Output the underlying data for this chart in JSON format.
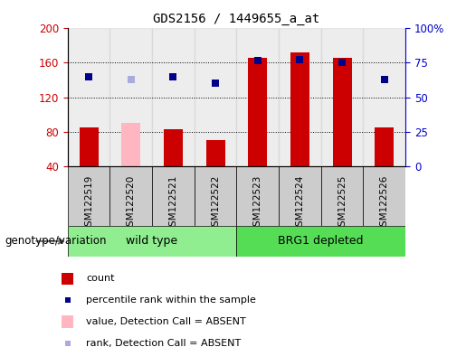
{
  "title": "GDS2156 / 1449655_a_at",
  "samples": [
    "GSM122519",
    "GSM122520",
    "GSM122521",
    "GSM122522",
    "GSM122523",
    "GSM122524",
    "GSM122525",
    "GSM122526"
  ],
  "group_labels": [
    "wild type",
    "BRG1 depleted"
  ],
  "group_ranges": [
    [
      0,
      3
    ],
    [
      4,
      7
    ]
  ],
  "group_colors": [
    "#90EE90",
    "#55DD55"
  ],
  "bar_values": [
    85,
    90,
    83,
    71,
    165,
    172,
    165,
    85
  ],
  "bar_colors": [
    "#CC0000",
    "#FFB6C1",
    "#CC0000",
    "#CC0000",
    "#CC0000",
    "#CC0000",
    "#CC0000",
    "#CC0000"
  ],
  "rank_values": [
    143,
    140,
    143,
    136,
    162,
    163,
    160,
    140
  ],
  "rank_colors": [
    "#00008B",
    "#AAAADD",
    "#00008B",
    "#00008B",
    "#00008B",
    "#00008B",
    "#00008B",
    "#00008B"
  ],
  "ylim_left": [
    40,
    200
  ],
  "ylim_right": [
    0,
    100
  ],
  "yticks_left": [
    40,
    80,
    120,
    160,
    200
  ],
  "yticks_right": [
    0,
    25,
    50,
    75,
    100
  ],
  "ytick_right_labels": [
    "0",
    "25",
    "50",
    "75",
    "100%"
  ],
  "grid_values": [
    80,
    120,
    160
  ],
  "ylabel_left_color": "#CC0000",
  "ylabel_right_color": "#0000CC",
  "legend_items": [
    {
      "label": "count",
      "color": "#CC0000",
      "is_rank": false
    },
    {
      "label": "percentile rank within the sample",
      "color": "#00008B",
      "is_rank": true
    },
    {
      "label": "value, Detection Call = ABSENT",
      "color": "#FFB6C1",
      "is_rank": false
    },
    {
      "label": "rank, Detection Call = ABSENT",
      "color": "#AAAADD",
      "is_rank": true
    }
  ],
  "genotype_label": "genotype/variation",
  "marker_size": 6,
  "col_bg_color": "#CCCCCC",
  "plot_bg_color": "#FFFFFF"
}
